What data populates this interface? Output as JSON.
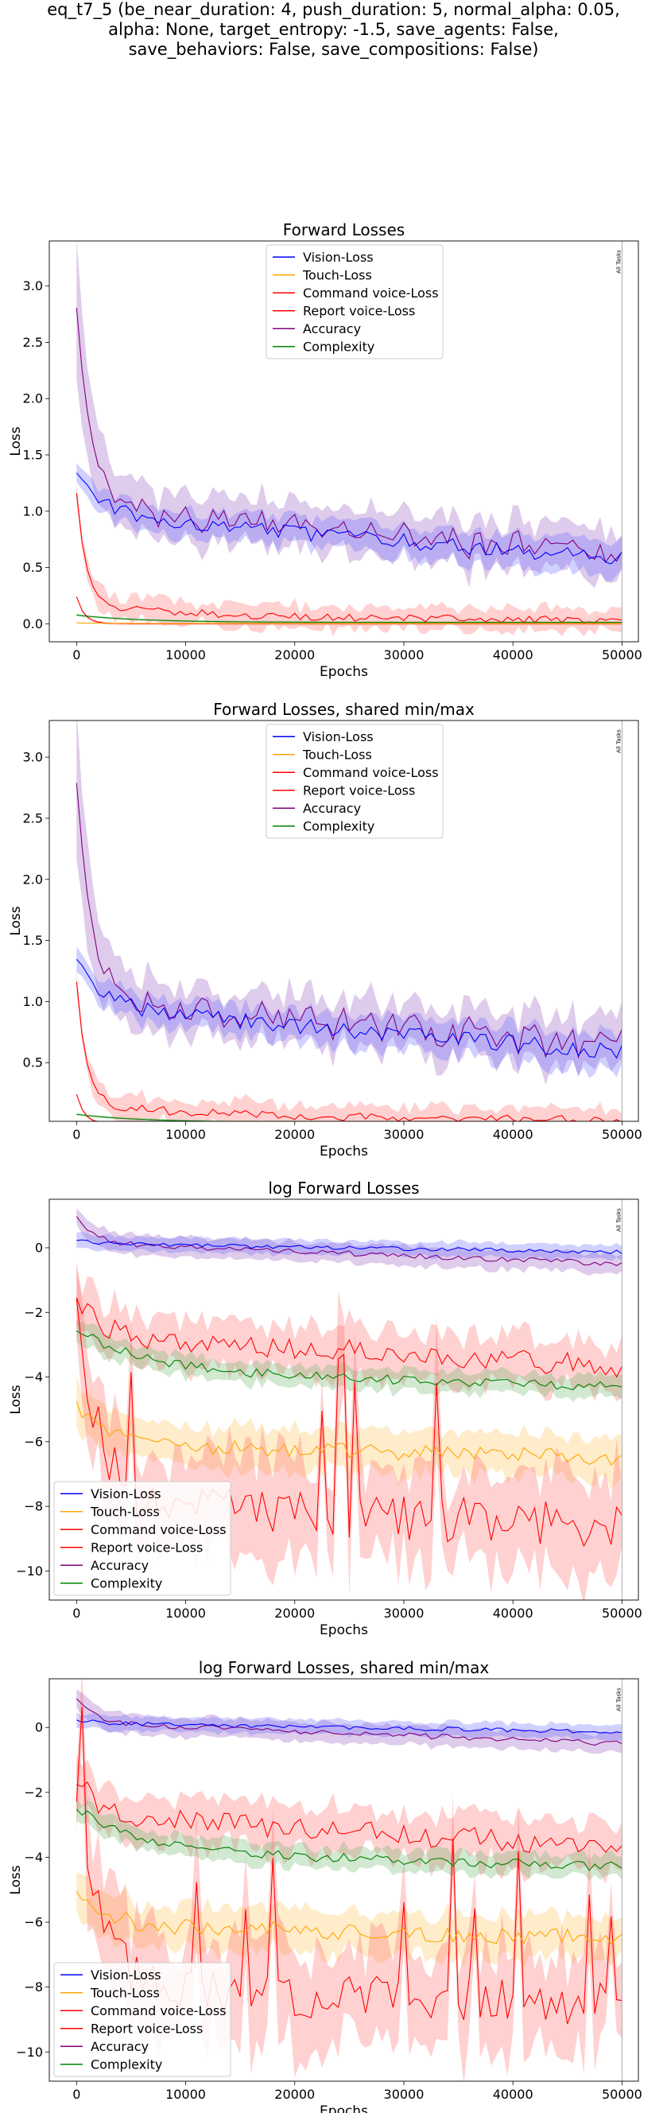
{
  "suptitle": {
    "line1": "eq_t7_5 (be_near_duration: 4, push_duration: 5, normal_alpha: 0.05,",
    "line2": "alpha: None, target_entropy: -1.5, save_agents: False,",
    "line3": "save_behaviors: False, save_compositions: False)"
  },
  "colors": {
    "vision": "#0000ff",
    "touch": "#ffa500",
    "command": "#ff0000",
    "report": "#ff0000",
    "accuracy": "#800080",
    "complexity": "#008000",
    "band_vision": "#7070ff",
    "band_touch": "#ffc866",
    "band_command": "#ff6666",
    "band_accuracy": "#9a5ec2",
    "band_complexity": "#66b266"
  },
  "chart_data": [
    {
      "type": "line",
      "title": "Forward Losses",
      "xlabel": "Epochs",
      "ylabel": "Loss",
      "xlim": [
        -2500,
        51500
      ],
      "ylim": [
        -0.16,
        3.4
      ],
      "xticks": [
        0,
        10000,
        20000,
        30000,
        40000,
        50000
      ],
      "xtick_labels": [
        "0",
        "10000",
        "20000",
        "30000",
        "40000",
        "50000"
      ],
      "yticks": [
        0.0,
        0.5,
        1.0,
        1.5,
        2.0,
        2.5,
        3.0
      ],
      "ytick_labels": [
        "0.0",
        "0.5",
        "1.0",
        "1.5",
        "2.0",
        "2.5",
        "3.0"
      ],
      "legend_position": "top-center",
      "annotation": "All Tasks",
      "series": [
        {
          "name": "Vision-Loss",
          "key": "vision"
        },
        {
          "name": "Touch-Loss",
          "key": "touch"
        },
        {
          "name": "Command voice-Loss",
          "key": "command"
        },
        {
          "name": "Report voice-Loss",
          "key": "report"
        },
        {
          "name": "Accuracy",
          "key": "accuracy"
        },
        {
          "name": "Complexity",
          "key": "complexity"
        }
      ]
    },
    {
      "type": "line",
      "title": "Forward Losses, shared min/max",
      "xlabel": "Epochs",
      "ylabel": "Loss",
      "xlim": [
        -2500,
        51500
      ],
      "ylim": [
        0.02,
        3.3
      ],
      "xticks": [
        0,
        10000,
        20000,
        30000,
        40000,
        50000
      ],
      "xtick_labels": [
        "0",
        "10000",
        "20000",
        "30000",
        "40000",
        "50000"
      ],
      "yticks": [
        0.5,
        1.0,
        1.5,
        2.0,
        2.5,
        3.0
      ],
      "ytick_labels": [
        "0.5",
        "1.0",
        "1.5",
        "2.0",
        "2.5",
        "3.0"
      ],
      "legend_position": "top-center",
      "annotation": "All Tasks",
      "series": [
        {
          "name": "Vision-Loss",
          "key": "vision"
        },
        {
          "name": "Touch-Loss",
          "key": "touch"
        },
        {
          "name": "Command voice-Loss",
          "key": "command"
        },
        {
          "name": "Report voice-Loss",
          "key": "report"
        },
        {
          "name": "Accuracy",
          "key": "accuracy"
        },
        {
          "name": "Complexity",
          "key": "complexity"
        }
      ]
    },
    {
      "type": "line",
      "title": "log Forward Losses",
      "xlabel": "Epochs",
      "ylabel": "Loss",
      "xlim": [
        -2500,
        51500
      ],
      "ylim": [
        -10.9,
        1.5
      ],
      "xticks": [
        0,
        10000,
        20000,
        30000,
        40000,
        50000
      ],
      "xtick_labels": [
        "0",
        "10000",
        "20000",
        "30000",
        "40000",
        "50000"
      ],
      "yticks": [
        0,
        -2,
        -4,
        -6,
        -8,
        -10
      ],
      "ytick_labels": [
        "0",
        "−2",
        "−4",
        "−6",
        "−8",
        "−10"
      ],
      "legend_position": "lower-left",
      "annotation": "All Tasks",
      "series": [
        {
          "name": "Vision-Loss",
          "key": "vision"
        },
        {
          "name": "Touch-Loss",
          "key": "touch"
        },
        {
          "name": "Command voice-Loss",
          "key": "command"
        },
        {
          "name": "Report voice-Loss",
          "key": "report"
        },
        {
          "name": "Accuracy",
          "key": "accuracy"
        },
        {
          "name": "Complexity",
          "key": "complexity"
        }
      ]
    },
    {
      "type": "line",
      "title": "log Forward Losses, shared min/max",
      "xlabel": "Epochs",
      "ylabel": "Loss",
      "xlim": [
        -2500,
        51500
      ],
      "ylim": [
        -10.9,
        1.5
      ],
      "xticks": [
        0,
        10000,
        20000,
        30000,
        40000,
        50000
      ],
      "xtick_labels": [
        "0",
        "10000",
        "20000",
        "30000",
        "40000",
        "50000"
      ],
      "yticks": [
        0,
        -2,
        -4,
        -6,
        -8,
        -10
      ],
      "ytick_labels": [
        "0",
        "−2",
        "−4",
        "−6",
        "−8",
        "−10"
      ],
      "legend_position": "lower-left",
      "annotation": "All Tasks",
      "series": [
        {
          "name": "Vision-Loss",
          "key": "vision"
        },
        {
          "name": "Touch-Loss",
          "key": "touch"
        },
        {
          "name": "Command voice-Loss",
          "key": "command"
        },
        {
          "name": "Report voice-Loss",
          "key": "report"
        },
        {
          "name": "Accuracy",
          "key": "accuracy"
        },
        {
          "name": "Complexity",
          "key": "complexity"
        }
      ]
    }
  ]
}
